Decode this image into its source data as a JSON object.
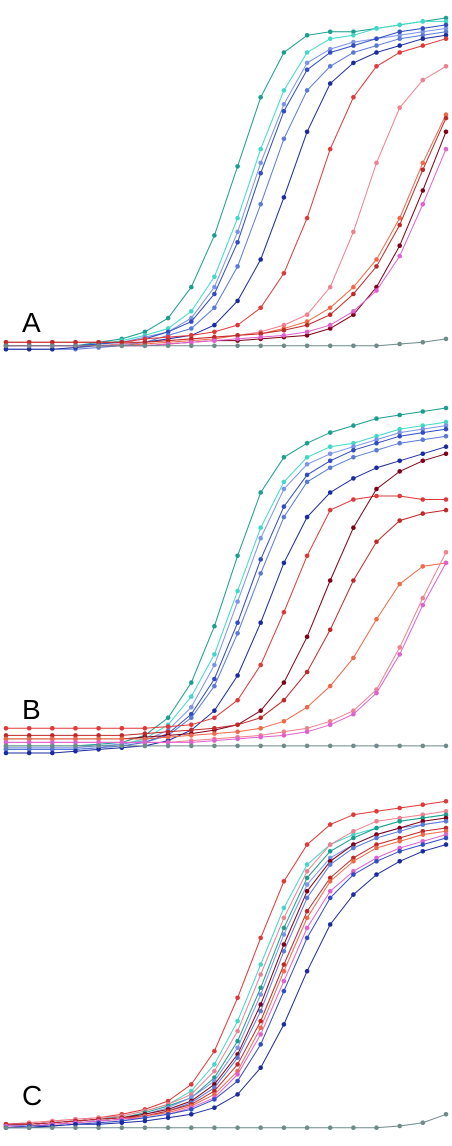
{
  "chart_data": [
    {
      "type": "line",
      "panel_label": "A",
      "grid": false,
      "axes_visible": false,
      "x": [
        1,
        2,
        3,
        4,
        5,
        6,
        7,
        8,
        9,
        10,
        11,
        12,
        13,
        14,
        15,
        16,
        17,
        18,
        19,
        20
      ],
      "ylim": [
        0,
        1
      ],
      "series": [
        {
          "color": "#1a9e8f",
          "values": [
            0.05,
            0.05,
            0.05,
            0.05,
            0.06,
            0.07,
            0.09,
            0.13,
            0.22,
            0.37,
            0.57,
            0.77,
            0.9,
            0.95,
            0.96,
            0.96,
            0.97,
            0.98,
            0.99,
            1.0
          ]
        },
        {
          "color": "#40d9c8",
          "values": [
            0.05,
            0.05,
            0.05,
            0.05,
            0.055,
            0.065,
            0.08,
            0.1,
            0.15,
            0.25,
            0.42,
            0.62,
            0.79,
            0.9,
            0.94,
            0.95,
            0.97,
            0.98,
            0.99,
            0.99
          ]
        },
        {
          "color": "#7b93e8",
          "values": [
            0.05,
            0.05,
            0.05,
            0.05,
            0.055,
            0.06,
            0.075,
            0.09,
            0.13,
            0.22,
            0.38,
            0.58,
            0.75,
            0.87,
            0.91,
            0.93,
            0.94,
            0.95,
            0.96,
            0.97
          ]
        },
        {
          "color": "#2f4cc2",
          "values": [
            0.05,
            0.05,
            0.05,
            0.05,
            0.055,
            0.06,
            0.07,
            0.09,
            0.12,
            0.2,
            0.35,
            0.55,
            0.73,
            0.85,
            0.9,
            0.92,
            0.94,
            0.96,
            0.97,
            0.98
          ]
        },
        {
          "color": "#5a7ad8",
          "values": [
            0.04,
            0.04,
            0.04,
            0.04,
            0.045,
            0.05,
            0.06,
            0.08,
            0.1,
            0.16,
            0.28,
            0.46,
            0.65,
            0.79,
            0.86,
            0.9,
            0.92,
            0.94,
            0.95,
            0.96
          ]
        },
        {
          "color": "#1a2aa0",
          "values": [
            0.04,
            0.04,
            0.04,
            0.045,
            0.05,
            0.055,
            0.06,
            0.07,
            0.08,
            0.11,
            0.18,
            0.3,
            0.48,
            0.67,
            0.81,
            0.87,
            0.9,
            0.92,
            0.94,
            0.95
          ]
        },
        {
          "color": "#e03838",
          "values": [
            0.06,
            0.06,
            0.06,
            0.06,
            0.06,
            0.06,
            0.07,
            0.075,
            0.08,
            0.09,
            0.11,
            0.16,
            0.26,
            0.42,
            0.62,
            0.77,
            0.86,
            0.9,
            0.92,
            0.94
          ]
        },
        {
          "color": "#f07f8f",
          "values": [
            0.05,
            0.05,
            0.05,
            0.05,
            0.05,
            0.055,
            0.06,
            0.065,
            0.07,
            0.075,
            0.08,
            0.09,
            0.11,
            0.14,
            0.22,
            0.38,
            0.58,
            0.74,
            0.82,
            0.86
          ]
        },
        {
          "color": "#f06848",
          "values": [
            0.05,
            0.05,
            0.05,
            0.05,
            0.05,
            0.05,
            0.055,
            0.06,
            0.065,
            0.07,
            0.08,
            0.085,
            0.1,
            0.12,
            0.16,
            0.22,
            0.3,
            0.42,
            0.58,
            0.72
          ]
        },
        {
          "color": "#c02828",
          "values": [
            0.06,
            0.06,
            0.06,
            0.06,
            0.06,
            0.06,
            0.06,
            0.065,
            0.07,
            0.075,
            0.08,
            0.085,
            0.095,
            0.11,
            0.14,
            0.2,
            0.28,
            0.4,
            0.56,
            0.71
          ]
        },
        {
          "color": "#800018",
          "values": [
            0.05,
            0.05,
            0.05,
            0.05,
            0.05,
            0.05,
            0.05,
            0.055,
            0.06,
            0.065,
            0.065,
            0.07,
            0.075,
            0.08,
            0.1,
            0.14,
            0.22,
            0.34,
            0.5,
            0.67
          ]
        },
        {
          "color": "#e060d0",
          "values": [
            0.05,
            0.05,
            0.05,
            0.05,
            0.05,
            0.05,
            0.05,
            0.055,
            0.06,
            0.065,
            0.07,
            0.075,
            0.08,
            0.09,
            0.11,
            0.15,
            0.21,
            0.31,
            0.46,
            0.62
          ]
        },
        {
          "color": "#6e8a8a",
          "values": [
            0.05,
            0.05,
            0.05,
            0.05,
            0.05,
            0.05,
            0.05,
            0.05,
            0.05,
            0.05,
            0.05,
            0.05,
            0.05,
            0.05,
            0.05,
            0.05,
            0.05,
            0.055,
            0.06,
            0.07
          ]
        }
      ]
    },
    {
      "type": "line",
      "panel_label": "B",
      "grid": false,
      "axes_visible": false,
      "x": [
        1,
        2,
        3,
        4,
        5,
        6,
        7,
        8,
        9,
        10,
        11,
        12,
        13,
        14,
        15,
        16,
        17,
        18,
        19,
        20
      ],
      "ylim": [
        0,
        1
      ],
      "series": [
        {
          "color": "#1a9e8f",
          "values": [
            0.04,
            0.04,
            0.04,
            0.04,
            0.045,
            0.05,
            0.07,
            0.12,
            0.22,
            0.38,
            0.58,
            0.76,
            0.86,
            0.9,
            0.93,
            0.95,
            0.97,
            0.98,
            0.99,
            1.0
          ]
        },
        {
          "color": "#40d9c8",
          "values": [
            0.04,
            0.04,
            0.04,
            0.04,
            0.04,
            0.045,
            0.06,
            0.1,
            0.18,
            0.3,
            0.48,
            0.66,
            0.79,
            0.86,
            0.89,
            0.9,
            0.92,
            0.94,
            0.95,
            0.96
          ]
        },
        {
          "color": "#7b93e8",
          "values": [
            0.035,
            0.035,
            0.035,
            0.035,
            0.04,
            0.045,
            0.055,
            0.085,
            0.15,
            0.27,
            0.45,
            0.63,
            0.77,
            0.84,
            0.87,
            0.89,
            0.91,
            0.93,
            0.94,
            0.95
          ]
        },
        {
          "color": "#2f4cc2",
          "values": [
            0.03,
            0.03,
            0.03,
            0.03,
            0.035,
            0.04,
            0.05,
            0.075,
            0.13,
            0.23,
            0.39,
            0.57,
            0.72,
            0.81,
            0.85,
            0.88,
            0.9,
            0.92,
            0.93,
            0.94
          ]
        },
        {
          "color": "#5a7ad8",
          "values": [
            0.03,
            0.03,
            0.03,
            0.03,
            0.035,
            0.04,
            0.05,
            0.07,
            0.12,
            0.21,
            0.36,
            0.53,
            0.69,
            0.79,
            0.83,
            0.86,
            0.88,
            0.9,
            0.91,
            0.92
          ]
        },
        {
          "color": "#1a2aa0",
          "values": [
            0.02,
            0.02,
            0.02,
            0.025,
            0.03,
            0.035,
            0.04,
            0.055,
            0.085,
            0.14,
            0.24,
            0.39,
            0.56,
            0.69,
            0.76,
            0.8,
            0.83,
            0.85,
            0.87,
            0.89
          ]
        },
        {
          "color": "#e03838",
          "values": [
            0.09,
            0.09,
            0.09,
            0.09,
            0.09,
            0.09,
            0.09,
            0.095,
            0.1,
            0.12,
            0.17,
            0.27,
            0.42,
            0.58,
            0.71,
            0.74,
            0.75,
            0.75,
            0.74,
            0.74
          ]
        },
        {
          "color": "#800018",
          "values": [
            0.06,
            0.06,
            0.06,
            0.06,
            0.06,
            0.06,
            0.065,
            0.07,
            0.075,
            0.085,
            0.1,
            0.14,
            0.22,
            0.35,
            0.51,
            0.66,
            0.77,
            0.82,
            0.85,
            0.87
          ]
        },
        {
          "color": "#c02828",
          "values": [
            0.07,
            0.07,
            0.07,
            0.07,
            0.07,
            0.07,
            0.075,
            0.08,
            0.085,
            0.09,
            0.1,
            0.12,
            0.17,
            0.25,
            0.37,
            0.51,
            0.62,
            0.68,
            0.7,
            0.71
          ]
        },
        {
          "color": "#f06848",
          "values": [
            0.06,
            0.06,
            0.06,
            0.06,
            0.06,
            0.06,
            0.06,
            0.065,
            0.07,
            0.075,
            0.08,
            0.09,
            0.11,
            0.15,
            0.21,
            0.29,
            0.4,
            0.5,
            0.55,
            0.56
          ]
        },
        {
          "color": "#f07f8f",
          "values": [
            0.05,
            0.05,
            0.05,
            0.05,
            0.05,
            0.05,
            0.05,
            0.05,
            0.055,
            0.06,
            0.065,
            0.07,
            0.08,
            0.09,
            0.11,
            0.14,
            0.2,
            0.32,
            0.46,
            0.59
          ]
        },
        {
          "color": "#e060d0",
          "values": [
            0.05,
            0.05,
            0.05,
            0.05,
            0.05,
            0.05,
            0.05,
            0.05,
            0.05,
            0.055,
            0.06,
            0.065,
            0.07,
            0.08,
            0.1,
            0.13,
            0.19,
            0.3,
            0.44,
            0.56
          ]
        },
        {
          "color": "#6e8a8a",
          "values": [
            0.04,
            0.04,
            0.04,
            0.04,
            0.04,
            0.04,
            0.04,
            0.04,
            0.04,
            0.04,
            0.04,
            0.04,
            0.04,
            0.04,
            0.04,
            0.04,
            0.04,
            0.04,
            0.04,
            0.04
          ]
        }
      ]
    },
    {
      "type": "line",
      "panel_label": "C",
      "grid": false,
      "axes_visible": false,
      "x": [
        1,
        2,
        3,
        4,
        5,
        6,
        7,
        8,
        9,
        10,
        11,
        12,
        13,
        14,
        15,
        16,
        17,
        18,
        19,
        20
      ],
      "ylim": [
        0,
        1
      ],
      "series": [
        {
          "color": "#e03838",
          "values": [
            0.02,
            0.025,
            0.03,
            0.035,
            0.04,
            0.05,
            0.065,
            0.09,
            0.14,
            0.24,
            0.4,
            0.58,
            0.75,
            0.86,
            0.92,
            0.95,
            0.96,
            0.97,
            0.98,
            0.99
          ]
        },
        {
          "color": "#40d9c8",
          "values": [
            0.015,
            0.02,
            0.025,
            0.03,
            0.035,
            0.045,
            0.06,
            0.08,
            0.12,
            0.2,
            0.33,
            0.5,
            0.67,
            0.8,
            0.86,
            0.89,
            0.91,
            0.93,
            0.94,
            0.95
          ]
        },
        {
          "color": "#f07f8f",
          "values": [
            0.02,
            0.025,
            0.03,
            0.035,
            0.04,
            0.045,
            0.06,
            0.08,
            0.11,
            0.18,
            0.3,
            0.47,
            0.64,
            0.78,
            0.86,
            0.9,
            0.93,
            0.94,
            0.95,
            0.96
          ]
        },
        {
          "color": "#1a9e8f",
          "values": [
            0.015,
            0.02,
            0.025,
            0.03,
            0.035,
            0.04,
            0.055,
            0.075,
            0.1,
            0.16,
            0.27,
            0.43,
            0.61,
            0.76,
            0.84,
            0.88,
            0.91,
            0.93,
            0.94,
            0.95
          ]
        },
        {
          "color": "#7b93e8",
          "values": [
            0.015,
            0.02,
            0.025,
            0.03,
            0.035,
            0.04,
            0.05,
            0.07,
            0.1,
            0.15,
            0.25,
            0.41,
            0.59,
            0.74,
            0.82,
            0.86,
            0.89,
            0.91,
            0.92,
            0.93
          ]
        },
        {
          "color": "#800018",
          "values": [
            0.02,
            0.02,
            0.025,
            0.03,
            0.035,
            0.04,
            0.05,
            0.065,
            0.09,
            0.14,
            0.23,
            0.38,
            0.56,
            0.72,
            0.81,
            0.86,
            0.89,
            0.91,
            0.93,
            0.94
          ]
        },
        {
          "color": "#5a7ad8",
          "values": [
            0.015,
            0.015,
            0.02,
            0.025,
            0.03,
            0.035,
            0.045,
            0.06,
            0.085,
            0.13,
            0.22,
            0.36,
            0.54,
            0.7,
            0.8,
            0.85,
            0.88,
            0.9,
            0.92,
            0.93
          ]
        },
        {
          "color": "#c02828",
          "values": [
            0.02,
            0.02,
            0.025,
            0.03,
            0.035,
            0.04,
            0.045,
            0.06,
            0.08,
            0.12,
            0.2,
            0.33,
            0.5,
            0.66,
            0.76,
            0.82,
            0.86,
            0.88,
            0.9,
            0.91
          ]
        },
        {
          "color": "#f06848",
          "values": [
            0.015,
            0.015,
            0.02,
            0.025,
            0.03,
            0.035,
            0.045,
            0.055,
            0.075,
            0.11,
            0.18,
            0.31,
            0.48,
            0.64,
            0.75,
            0.81,
            0.85,
            0.87,
            0.89,
            0.9
          ]
        },
        {
          "color": "#e060d0",
          "values": [
            0.015,
            0.015,
            0.02,
            0.025,
            0.03,
            0.035,
            0.04,
            0.05,
            0.07,
            0.1,
            0.17,
            0.29,
            0.45,
            0.61,
            0.72,
            0.78,
            0.82,
            0.85,
            0.87,
            0.89
          ]
        },
        {
          "color": "#2f4cc2",
          "values": [
            0.01,
            0.015,
            0.015,
            0.02,
            0.025,
            0.03,
            0.04,
            0.05,
            0.065,
            0.095,
            0.15,
            0.26,
            0.42,
            0.58,
            0.7,
            0.77,
            0.81,
            0.84,
            0.86,
            0.88
          ]
        },
        {
          "color": "#1a2aa0",
          "values": [
            0.01,
            0.01,
            0.015,
            0.02,
            0.02,
            0.025,
            0.03,
            0.04,
            0.05,
            0.07,
            0.11,
            0.19,
            0.32,
            0.48,
            0.62,
            0.71,
            0.77,
            0.81,
            0.84,
            0.86
          ]
        },
        {
          "color": "#6e8a8a",
          "values": [
            0.01,
            0.01,
            0.01,
            0.01,
            0.01,
            0.01,
            0.01,
            0.01,
            0.01,
            0.01,
            0.01,
            0.01,
            0.01,
            0.01,
            0.01,
            0.01,
            0.01,
            0.015,
            0.025,
            0.05
          ]
        }
      ]
    }
  ]
}
